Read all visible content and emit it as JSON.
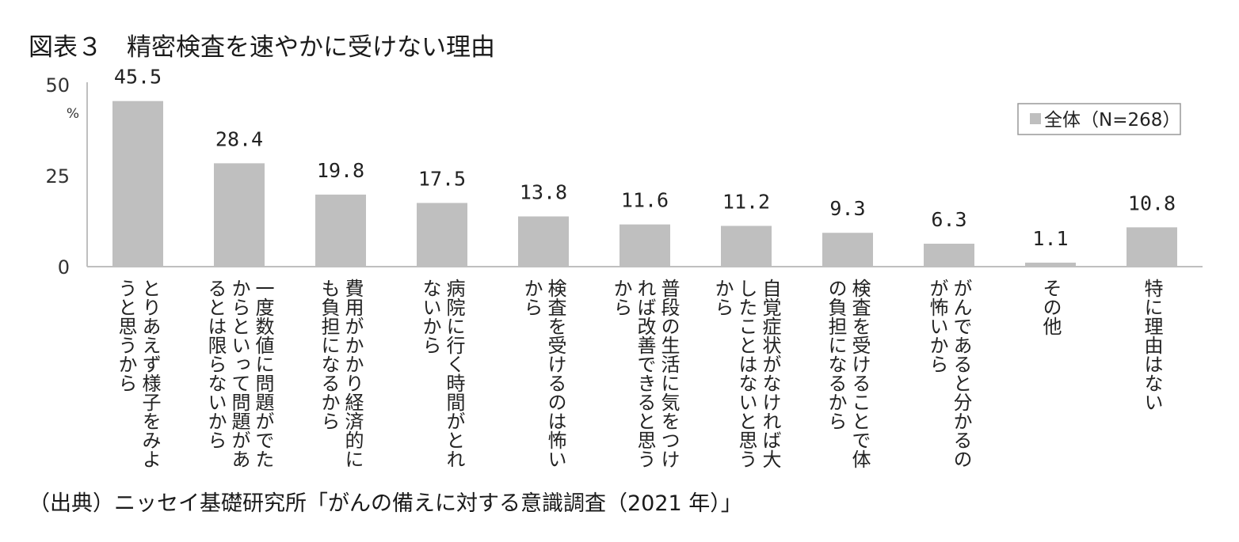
{
  "title": "図表３　精密検査を速やかに受けない理由",
  "source": "（出典）ニッセイ基礎研究所「がんの備えに対する意識調査（2021 年）」",
  "chart_data": {
    "type": "bar",
    "unit_label": "%",
    "yticks": [
      "0",
      "25",
      "50"
    ],
    "ylim": [
      0,
      50
    ],
    "legend": {
      "label": "全体（N=268）",
      "position": "top-right"
    },
    "colors": {
      "bar": "#bfbfbf",
      "axis": "#bfbfbf",
      "legend_border": "#999999"
    },
    "categories": [
      [
        "とりあえず様子をみよ",
        "うと思うから"
      ],
      [
        "一度数値に問題がでた",
        "からといって問題があ",
        "るとは限らないから"
      ],
      [
        "費用がかかり経済的に",
        "も負担になるから"
      ],
      [
        "病院に行く時間がとれ",
        "ないから"
      ],
      [
        "検査を受けるのは怖い",
        "から"
      ],
      [
        "普段の生活に気をつけ",
        "れば改善できると思う",
        "から"
      ],
      [
        "自覚症状がなければ大",
        "したことはないと思う",
        "から"
      ],
      [
        "検査を受けることで体",
        "の負担になるから"
      ],
      [
        "がんであると分かるの",
        "が怖いから"
      ],
      [
        "その他"
      ],
      [
        "特に理由はない"
      ]
    ],
    "values": [
      45.5,
      28.4,
      19.8,
      17.5,
      13.8,
      11.6,
      11.2,
      9.3,
      6.3,
      1.1,
      10.8
    ],
    "value_labels": [
      "45.5",
      "28.4",
      "19.8",
      "17.5",
      "13.8",
      "11.6",
      "11.2",
      "9.3",
      "6.3",
      "1.1",
      "10.8"
    ]
  }
}
